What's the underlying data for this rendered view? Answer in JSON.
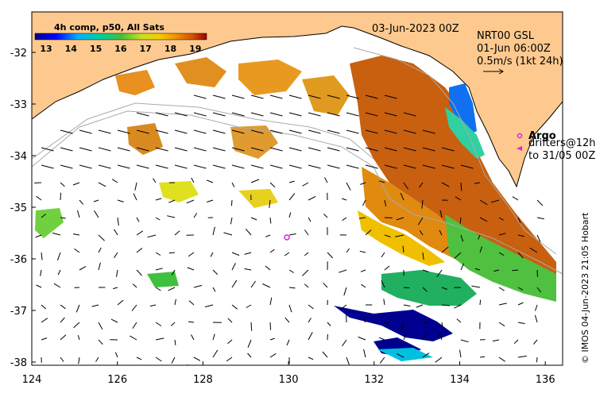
{
  "map": {
    "colorbar_title": "4h comp, p50, All Sats",
    "colorbar_ticks": [
      "13",
      "14",
      "15",
      "16",
      "17",
      "18",
      "19"
    ],
    "date_label": "03-Jun-2023 00Z",
    "current_info": {
      "line1": "NRT00 GSL",
      "line2": "01-Jun 06:00Z",
      "line3": "0.5m/s (1kt 24h)"
    },
    "argo_label": "Argo",
    "drifters_line1": "drifters@12h",
    "drifters_line2": "to 31/05 00Z",
    "credit": "© IMOS 04-Jun-2023 21:05 Hobart",
    "lon_ticks": [
      "124",
      "126",
      "128",
      "130",
      "132",
      "134",
      "136"
    ],
    "lat_ticks": [
      "-32",
      "-33",
      "-34",
      "-35",
      "-36",
      "-37",
      "-38"
    ],
    "colors": {
      "land": "#fdc98f",
      "marker": "#e020e0"
    }
  }
}
